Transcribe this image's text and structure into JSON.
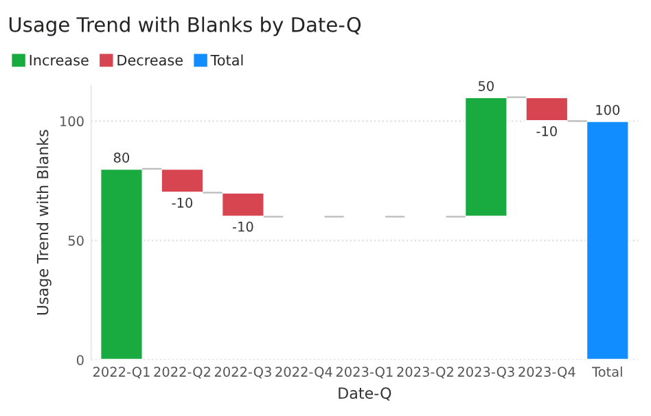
{
  "chart_data": {
    "type": "bar",
    "title": "Usage Trend with Blanks by Date-Q",
    "xlabel": "Date-Q",
    "ylabel": "Usage Trend with Blanks",
    "categories": [
      "2022-Q1",
      "2022-Q2",
      "2022-Q3",
      "2022-Q4",
      "2023-Q1",
      "2023-Q2",
      "2023-Q3",
      "2023-Q4",
      "Total"
    ],
    "series": [
      {
        "name": "Increase",
        "color": "#1aab40",
        "values": [
          80,
          null,
          null,
          null,
          null,
          null,
          50,
          null,
          null
        ],
        "base": [
          0,
          null,
          null,
          null,
          null,
          null,
          60,
          null,
          null
        ]
      },
      {
        "name": "Decrease",
        "color": "#d64550",
        "values": [
          null,
          -10,
          -10,
          null,
          null,
          null,
          null,
          -10,
          null
        ],
        "base": [
          null,
          80,
          70,
          null,
          null,
          null,
          null,
          110,
          null
        ]
      },
      {
        "name": "Total",
        "color": "#118dff",
        "values": [
          null,
          null,
          null,
          null,
          null,
          null,
          null,
          null,
          100
        ],
        "base": [
          null,
          null,
          null,
          null,
          null,
          null,
          null,
          null,
          0
        ]
      }
    ],
    "value_labels": [
      "80",
      "-10",
      "-10",
      null,
      null,
      null,
      "50",
      "-10",
      "100"
    ],
    "ylim": [
      0,
      115
    ],
    "yticks": [
      0,
      50,
      100
    ],
    "grid": "y",
    "legend": "top left"
  }
}
